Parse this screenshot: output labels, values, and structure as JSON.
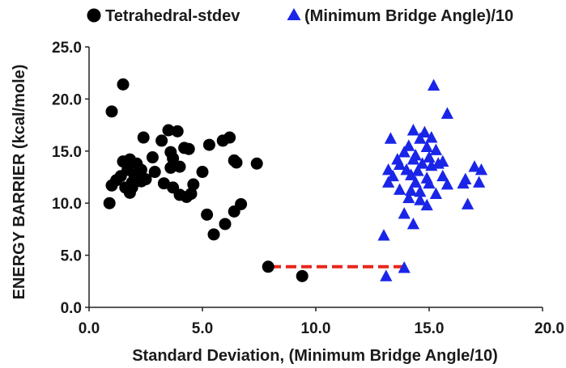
{
  "chart_data": {
    "type": "scatter",
    "xlabel": "Standard Deviation, (Minimum Bridge Angle/10)",
    "ylabel": "ENERGY BARRIER (kcal/mole)",
    "xlim": [
      0,
      20
    ],
    "ylim": [
      0,
      25
    ],
    "x_ticks": [
      "0.0",
      "5.0",
      "10.0",
      "15.0",
      "20.0"
    ],
    "y_ticks": [
      "0.0",
      "5.0",
      "10.0",
      "15.0",
      "20.0",
      "25.0"
    ],
    "grid": false,
    "legend_position": "top",
    "series": [
      {
        "name": "Tetrahedral-stdev",
        "marker": "circle",
        "color": "#000000",
        "points": [
          [
            1.5,
            21.4
          ],
          [
            1.0,
            18.8
          ],
          [
            2.4,
            16.3
          ],
          [
            3.5,
            17.0
          ],
          [
            3.9,
            16.9
          ],
          [
            6.2,
            16.3
          ],
          [
            5.9,
            16.0
          ],
          [
            3.2,
            16.0
          ],
          [
            5.3,
            15.6
          ],
          [
            4.2,
            15.3
          ],
          [
            4.4,
            15.2
          ],
          [
            3.6,
            14.9
          ],
          [
            2.8,
            14.4
          ],
          [
            3.7,
            14.3
          ],
          [
            1.5,
            14.0
          ],
          [
            1.8,
            14.2
          ],
          [
            2.1,
            13.8
          ],
          [
            6.4,
            14.1
          ],
          [
            6.5,
            13.9
          ],
          [
            7.4,
            13.8
          ],
          [
            1.7,
            13.2
          ],
          [
            2.3,
            13.2
          ],
          [
            2.9,
            13.0
          ],
          [
            3.6,
            13.4
          ],
          [
            4.0,
            13.5
          ],
          [
            1.4,
            12.6
          ],
          [
            2.0,
            12.7
          ],
          [
            2.5,
            12.3
          ],
          [
            5.0,
            13.0
          ],
          [
            1.2,
            12.2
          ],
          [
            1.9,
            12.0
          ],
          [
            2.3,
            12.1
          ],
          [
            3.3,
            11.9
          ],
          [
            1.0,
            11.7
          ],
          [
            1.6,
            11.5
          ],
          [
            1.9,
            11.5
          ],
          [
            3.7,
            11.5
          ],
          [
            4.6,
            11.8
          ],
          [
            1.8,
            11.0
          ],
          [
            4.0,
            10.8
          ],
          [
            4.3,
            10.6
          ],
          [
            4.5,
            10.9
          ],
          [
            0.9,
            10.0
          ],
          [
            6.7,
            9.9
          ],
          [
            5.2,
            8.9
          ],
          [
            6.4,
            9.2
          ],
          [
            6.0,
            8.0
          ],
          [
            5.5,
            7.0
          ],
          [
            7.9,
            3.9
          ],
          [
            9.4,
            3.0
          ]
        ]
      },
      {
        "name": "(Minimum Bridge Angle)/10",
        "marker": "triangle",
        "color": "#1a25e8",
        "points": [
          [
            15.2,
            21.3
          ],
          [
            15.8,
            18.6
          ],
          [
            14.3,
            17.0
          ],
          [
            14.8,
            16.8
          ],
          [
            13.3,
            16.2
          ],
          [
            14.6,
            16.2
          ],
          [
            15.1,
            16.3
          ],
          [
            14.1,
            15.5
          ],
          [
            14.9,
            15.4
          ],
          [
            15.3,
            15.1
          ],
          [
            13.9,
            14.9
          ],
          [
            14.4,
            14.6
          ],
          [
            15.0,
            14.4
          ],
          [
            13.6,
            14.2
          ],
          [
            14.3,
            14.2
          ],
          [
            15.6,
            14.0
          ],
          [
            13.7,
            13.7
          ],
          [
            14.7,
            13.8
          ],
          [
            15.1,
            13.6
          ],
          [
            15.4,
            13.8
          ],
          [
            13.2,
            13.2
          ],
          [
            14.0,
            13.2
          ],
          [
            14.5,
            13.1
          ],
          [
            17.0,
            13.5
          ],
          [
            17.3,
            13.2
          ],
          [
            13.4,
            12.6
          ],
          [
            14.2,
            12.7
          ],
          [
            14.9,
            12.4
          ],
          [
            15.6,
            12.6
          ],
          [
            16.6,
            12.3
          ],
          [
            17.2,
            12.0
          ],
          [
            13.2,
            12.0
          ],
          [
            14.4,
            12.0
          ],
          [
            15.0,
            11.9
          ],
          [
            15.8,
            11.8
          ],
          [
            16.5,
            11.9
          ],
          [
            13.7,
            11.3
          ],
          [
            14.2,
            11.2
          ],
          [
            14.6,
            11.1
          ],
          [
            15.3,
            10.9
          ],
          [
            14.1,
            10.5
          ],
          [
            14.6,
            10.3
          ],
          [
            14.9,
            9.8
          ],
          [
            16.7,
            9.9
          ],
          [
            13.9,
            9.0
          ],
          [
            14.3,
            8.0
          ],
          [
            13.0,
            6.9
          ],
          [
            13.9,
            3.8
          ],
          [
            13.1,
            3.0
          ]
        ]
      }
    ],
    "annotations": [
      {
        "type": "dashed-line",
        "color": "#e8261a",
        "from": [
          8.0,
          3.9
        ],
        "to": [
          13.9,
          3.9
        ]
      }
    ]
  }
}
